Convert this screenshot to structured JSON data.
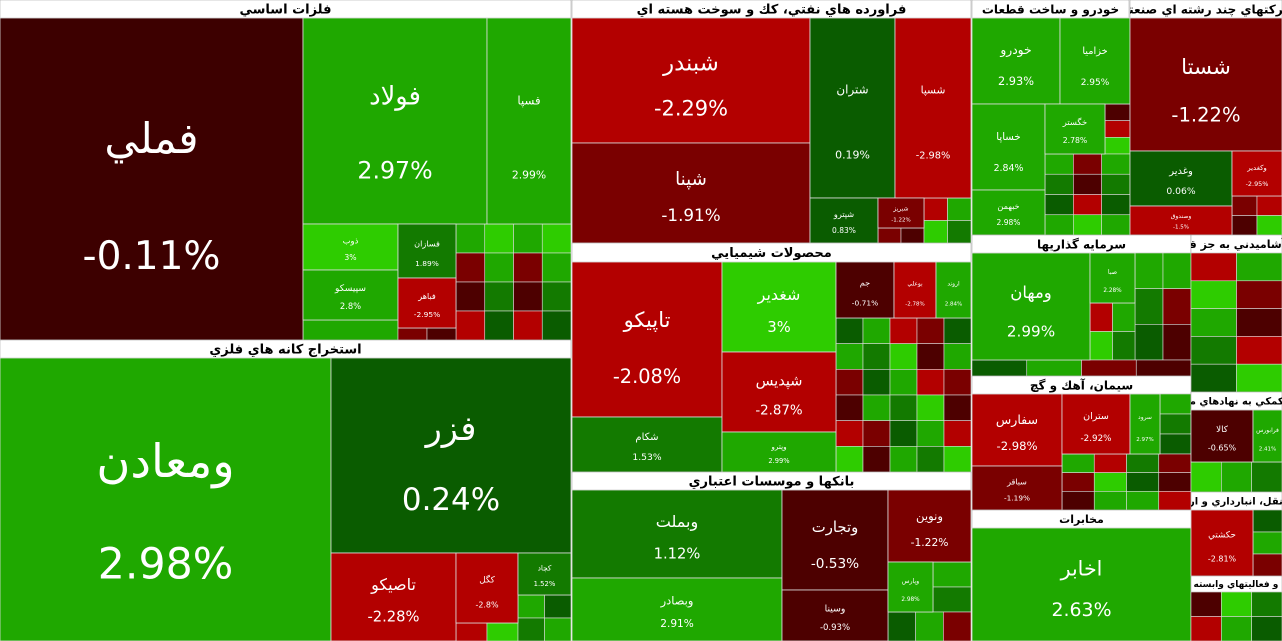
{
  "sectors": [
    {
      "title": "فلزات اساسي",
      "tiles": [
        {
          "name": "فملي",
          "change": "-0.11%",
          "color": "#3d0000"
        },
        {
          "name": "فولاد",
          "change": "2.97%",
          "color": "#1fa800"
        },
        {
          "name": "فسپا",
          "change": "2.99%",
          "color": "#1fa800"
        },
        {
          "name": "ذوب",
          "change": "3%",
          "color": "#2ecc00"
        },
        {
          "name": "سپيسكو",
          "change": "2.8%",
          "color": "#1fa800"
        },
        {
          "name": "فسازان",
          "change": "1.89%",
          "color": "#137a00"
        },
        {
          "name": "فباهر",
          "change": "-2.95%",
          "color": "#b30000"
        }
      ]
    },
    {
      "title": "استخراج كانه هاي فلزي",
      "tiles": [
        {
          "name": "ومعادن",
          "change": "2.98%",
          "color": "#1fa800"
        },
        {
          "name": "فزر",
          "change": "0.24%",
          "color": "#0a5c00"
        },
        {
          "name": "تاصيكو",
          "change": "-2.28%",
          "color": "#b30000"
        },
        {
          "name": "كگل",
          "change": "-2.8%",
          "color": "#b30000"
        },
        {
          "name": "كچاد",
          "change": "1.52%",
          "color": "#137a00"
        }
      ]
    },
    {
      "title": "فراورده هاي نفتي، كك و سوخت هسته اي",
      "tiles": [
        {
          "name": "شبندر",
          "change": "-2.29%",
          "color": "#b30000"
        },
        {
          "name": "شپنا",
          "change": "-1.91%",
          "color": "#7a0000"
        },
        {
          "name": "شتران",
          "change": "0.19%",
          "color": "#0a5c00"
        },
        {
          "name": "شسپا",
          "change": "-2.98%",
          "color": "#b30000"
        },
        {
          "name": "شپترو",
          "change": "0.83%",
          "color": "#0a5c00"
        },
        {
          "name": "شبريز",
          "change": "-1.22%",
          "color": "#7a0000"
        }
      ]
    },
    {
      "title": "محصولات شيميايي",
      "tiles": [
        {
          "name": "تاپيكو",
          "change": "-2.08%",
          "color": "#b30000"
        },
        {
          "name": "شكام",
          "change": "1.53%",
          "color": "#137a00"
        },
        {
          "name": "شغدير",
          "change": "3%",
          "color": "#2ecc00"
        },
        {
          "name": "شپديس",
          "change": "-2.87%",
          "color": "#b30000"
        },
        {
          "name": "وپترو",
          "change": "2.99%",
          "color": "#1fa800"
        },
        {
          "name": "جم",
          "change": "-0.71%",
          "color": "#4d0000"
        },
        {
          "name": "بوعلي",
          "change": "-2.78%",
          "color": "#b30000"
        },
        {
          "name": "اروند",
          "change": "2.84%",
          "color": "#1fa800"
        }
      ]
    },
    {
      "title": "بانكها و موسسات اعتباري",
      "tiles": [
        {
          "name": "وبملت",
          "change": "1.12%",
          "color": "#137a00"
        },
        {
          "name": "وبصادر",
          "change": "2.91%",
          "color": "#1fa800"
        },
        {
          "name": "وتجارت",
          "change": "-0.53%",
          "color": "#4d0000"
        },
        {
          "name": "وسينا",
          "change": "-0.93%",
          "color": "#4d0000"
        },
        {
          "name": "ونوين",
          "change": "-1.22%",
          "color": "#7a0000"
        },
        {
          "name": "وپارس",
          "change": "2.98%",
          "color": "#1fa800"
        }
      ]
    },
    {
      "title": "خودرو و ساخت قطعات",
      "tiles": [
        {
          "name": "خودرو",
          "change": "2.93%",
          "color": "#1fa800"
        },
        {
          "name": "خزاميا",
          "change": "2.95%",
          "color": "#1fa800"
        },
        {
          "name": "خساپا",
          "change": "2.84%",
          "color": "#1fa800"
        },
        {
          "name": "خگستر",
          "change": "2.78%",
          "color": "#1fa800"
        },
        {
          "name": "خبهمن",
          "change": "2.98%",
          "color": "#1fa800"
        }
      ]
    },
    {
      "title": "شركتهاي چند رشته اي صنعتي",
      "tiles": [
        {
          "name": "شستا",
          "change": "-1.22%",
          "color": "#7a0000"
        },
        {
          "name": "وغدير",
          "change": "0.06%",
          "color": "#0a5c00"
        },
        {
          "name": "وكغدير",
          "change": "-2.95%",
          "color": "#b30000"
        },
        {
          "name": "وصندوق",
          "change": "-1.5%",
          "color": "#b30000"
        }
      ]
    },
    {
      "title": "سرمايه گذاريها",
      "tiles": [
        {
          "name": "ومهان",
          "change": "2.99%",
          "color": "#1fa800"
        },
        {
          "name": "صبا",
          "change": "2.28%",
          "color": "#1fa800"
        }
      ]
    },
    {
      "title": "غذايي و آشاميدني به جز قند و شكر",
      "tiles": []
    },
    {
      "title": "سيمان، آهك و گچ",
      "tiles": [
        {
          "name": "سفارس",
          "change": "-2.98%",
          "color": "#b30000"
        },
        {
          "name": "ستران",
          "change": "-2.92%",
          "color": "#b30000"
        },
        {
          "name": "سرود",
          "change": "2.97%",
          "color": "#1fa800"
        },
        {
          "name": "سباقر",
          "change": "-1.19%",
          "color": "#7a0000"
        }
      ]
    },
    {
      "title": "فعاليتهاي كمكي به نهادهاي مالي واسط",
      "tiles": [
        {
          "name": "كالا",
          "change": "-0.65%",
          "color": "#4d0000"
        },
        {
          "name": "فرابورس",
          "change": "2.41%",
          "color": "#1fa800"
        }
      ]
    },
    {
      "title": "مخابرات",
      "tiles": [
        {
          "name": "اخابر",
          "change": "2.63%",
          "color": "#1fa800"
        }
      ]
    },
    {
      "title": "حمل و نقل، انبارداري و ارتباطات",
      "tiles": [
        {
          "name": "حكشتي",
          "change": "-2.81%",
          "color": "#b30000"
        }
      ]
    },
    {
      "title": "رايانه و فعاليتهاي وابسته به آن",
      "tiles": []
    }
  ]
}
